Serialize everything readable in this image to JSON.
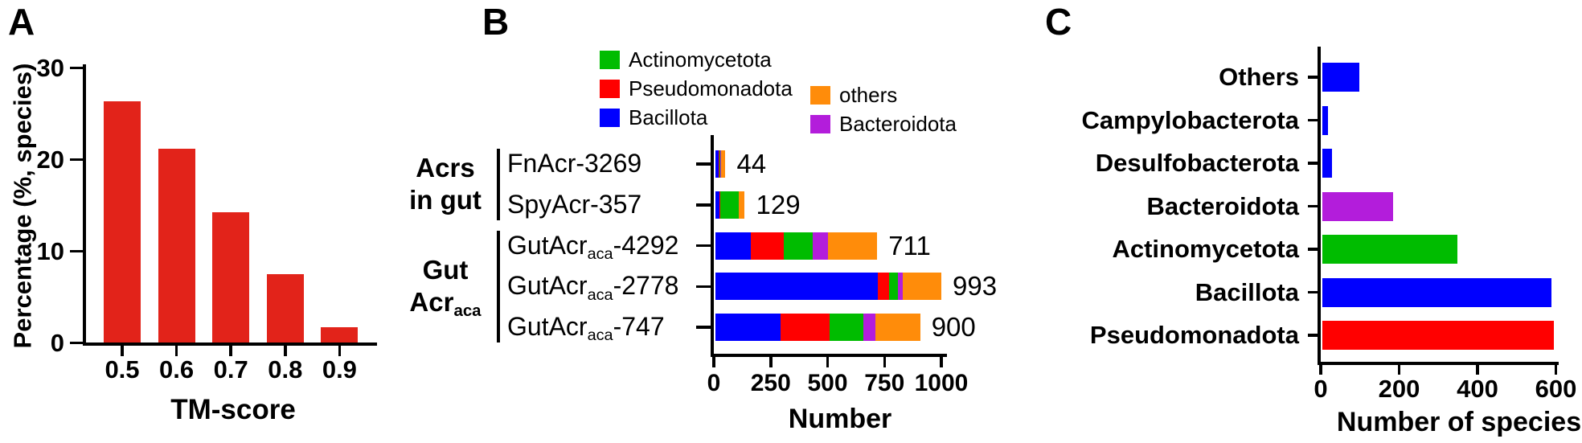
{
  "figure": {
    "panel_a": {
      "panel_label": "A",
      "y_axis_title": "Percentage (%, species)",
      "x_axis_title": "TM-score"
    },
    "panel_b": {
      "panel_label": "B",
      "x_axis_title": "Number",
      "legend_left": [
        {
          "label": "Actinomycetota",
          "color": "#00bc00"
        },
        {
          "label": "Pseudomonadota",
          "color": "#ff0000"
        },
        {
          "label": "Bacillota",
          "color": "#0000ff"
        }
      ],
      "legend_right": [
        {
          "label": "others",
          "color": "#ff8c0a"
        },
        {
          "label": "Bacteroidota",
          "color": "#b31ddb"
        }
      ],
      "groups": [
        {
          "lines": [
            {
              "text": "Acrs"
            },
            {
              "text": "in gut"
            }
          ],
          "rows": [
            0,
            1
          ]
        },
        {
          "lines": [
            {
              "text": "Gut"
            },
            {
              "text": "Acr",
              "sub": "aca"
            }
          ],
          "rows": [
            2,
            3,
            4
          ]
        }
      ]
    },
    "panel_c": {
      "panel_label": "C",
      "x_axis_title": "Number of species"
    }
  },
  "colors": {
    "panel_a_bar": "#e2231a",
    "bacillota_blue": "#0000ff",
    "pseudomonadota_red": "#ff0000",
    "actinomycetota_green": "#00bc00",
    "bacteroidota_purple": "#b31ddb",
    "others_orange": "#ff8c0a",
    "ink": "#000000"
  },
  "chart_data": [
    {
      "panel": "A",
      "type": "bar",
      "title": "",
      "xlabel": "TM-score",
      "ylabel": "Percentage (%, species)",
      "categories": [
        "0.5",
        "0.6",
        "0.7",
        "0.8",
        "0.9"
      ],
      "values": [
        26.3,
        21.1,
        14.2,
        7.5,
        1.7
      ],
      "ylim": [
        0,
        30
      ],
      "yticks": [
        0,
        10,
        20,
        30
      ],
      "grid": false,
      "legend": "none",
      "bar_color": "#e2231a"
    },
    {
      "panel": "B",
      "type": "stacked_bar_horizontal",
      "title": "",
      "xlabel": "Number",
      "xlim": [
        0,
        1000
      ],
      "xticks": [
        0,
        250,
        500,
        750,
        1000
      ],
      "grid": false,
      "legend_position": "top",
      "categories": [
        {
          "text": "FnAcr-3269"
        },
        {
          "text": "SpyAcr-357"
        },
        {
          "text": "GutAcr",
          "sub": "aca",
          "post": "-4292"
        },
        {
          "text": "GutAcr",
          "sub": "aca",
          "post": "-2778"
        },
        {
          "text": "GutAcr",
          "sub": "aca",
          "post": "-747"
        }
      ],
      "series": [
        {
          "name": "Bacillota",
          "color": "#0000ff",
          "values": [
            15,
            16,
            155,
            713,
            286
          ]
        },
        {
          "name": "Pseudomonadota",
          "color": "#ff0000",
          "values": [
            4,
            7,
            146,
            49,
            216
          ]
        },
        {
          "name": "Actinomycetota",
          "color": "#00bc00",
          "values": [
            3,
            80,
            127,
            40,
            147
          ]
        },
        {
          "name": "Bacteroidota",
          "color": "#b31ddb",
          "values": [
            4,
            0,
            66,
            21,
            54
          ]
        },
        {
          "name": "others",
          "color": "#ff8c0a",
          "values": [
            18,
            26,
            217,
            170,
            197
          ]
        }
      ],
      "totals": [
        44,
        129,
        711,
        993,
        900
      ]
    },
    {
      "panel": "C",
      "type": "bar_horizontal",
      "title": "",
      "xlabel": "Number of species",
      "xlim": [
        0,
        600
      ],
      "xticks": [
        0,
        200,
        400,
        600
      ],
      "grid": false,
      "legend": "none",
      "categories": [
        "Others",
        "Campylobacterota",
        "Desulfobacterota",
        "Bacteroidota",
        "Actinomycetota",
        "Bacillota",
        "Pseudomonadota"
      ],
      "values": [
        95,
        15,
        24,
        180,
        345,
        585,
        590
      ],
      "colors": [
        "#0000ff",
        "#0000ff",
        "#0000ff",
        "#b31ddb",
        "#00bc00",
        "#0000ff",
        "#ff0000"
      ]
    }
  ]
}
